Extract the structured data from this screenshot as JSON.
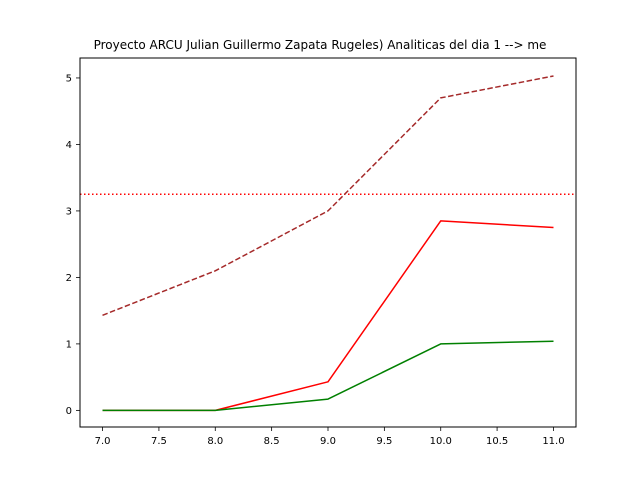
{
  "chart_data": {
    "type": "line",
    "title": "Proyecto ARCU Julian Guillermo Zapata Rugeles) Analiticas del  dia 1  --> me",
    "xlabel": "",
    "ylabel": "",
    "xlim": [
      6.8,
      11.2
    ],
    "ylim": [
      -0.25,
      5.3
    ],
    "x_ticks": [
      7.0,
      7.5,
      8.0,
      8.5,
      9.0,
      9.5,
      10.0,
      10.5,
      11.0
    ],
    "x_tick_labels": [
      "7.0",
      "7.5",
      "8.0",
      "8.5",
      "9.0",
      "9.5",
      "10.0",
      "10.5",
      "11.0"
    ],
    "y_ticks": [
      0,
      1,
      2,
      3,
      4,
      5
    ],
    "y_tick_labels": [
      "0",
      "1",
      "2",
      "3",
      "4",
      "5"
    ],
    "grid": false,
    "x": [
      7,
      8,
      9,
      10,
      11
    ],
    "series": [
      {
        "color": "#a52a2a",
        "style": "dashed",
        "values": [
          1.43,
          2.1,
          3.0,
          4.7,
          5.03
        ]
      },
      {
        "color": "#ff0000",
        "style": "solid",
        "values": [
          0.0,
          0.0,
          0.43,
          2.85,
          2.75
        ]
      },
      {
        "color": "#008000",
        "style": "solid",
        "values": [
          0.0,
          0.0,
          0.17,
          1.0,
          1.04
        ]
      }
    ],
    "hlines": [
      {
        "color": "#ff0000",
        "style": "dotted",
        "y": 3.25
      }
    ]
  }
}
